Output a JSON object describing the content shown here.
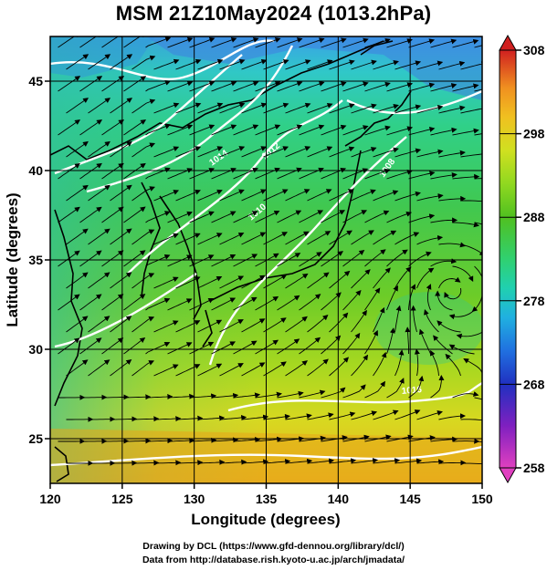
{
  "title": "MSM 21Z10May2024 (1013.2hPa)",
  "x_axis": {
    "label": "Longitude (degrees)",
    "ticks": [
      "120",
      "125",
      "130",
      "135",
      "140",
      "145",
      "150"
    ],
    "range": [
      120,
      150
    ]
  },
  "y_axis": {
    "label": "Latitude  (degrees)",
    "ticks": [
      "25",
      "30",
      "35",
      "40",
      "45"
    ],
    "range": [
      22.5,
      47.5
    ]
  },
  "colorbar": {
    "ticks": [
      "258",
      "268",
      "278",
      "288",
      "298",
      "308"
    ],
    "range": [
      258,
      308
    ],
    "colors": [
      "#e040c0",
      "#8020c0",
      "#2030c0",
      "#2070e0",
      "#20b0e0",
      "#20d0b0",
      "#30d070",
      "#50c020",
      "#90d820",
      "#d0e020",
      "#f0c020",
      "#f09020",
      "#e05020",
      "#d02020"
    ]
  },
  "contour_labels": [
    "1014",
    "1012",
    "1010",
    "1008",
    "1016"
  ],
  "credits": {
    "line1": "Drawing by DCL (https://www.gfd-dennou.org/library/dcl/)",
    "line2": "Data from http://database.rish.kyoto-u.ac.jp/arch/jmadata/"
  }
}
